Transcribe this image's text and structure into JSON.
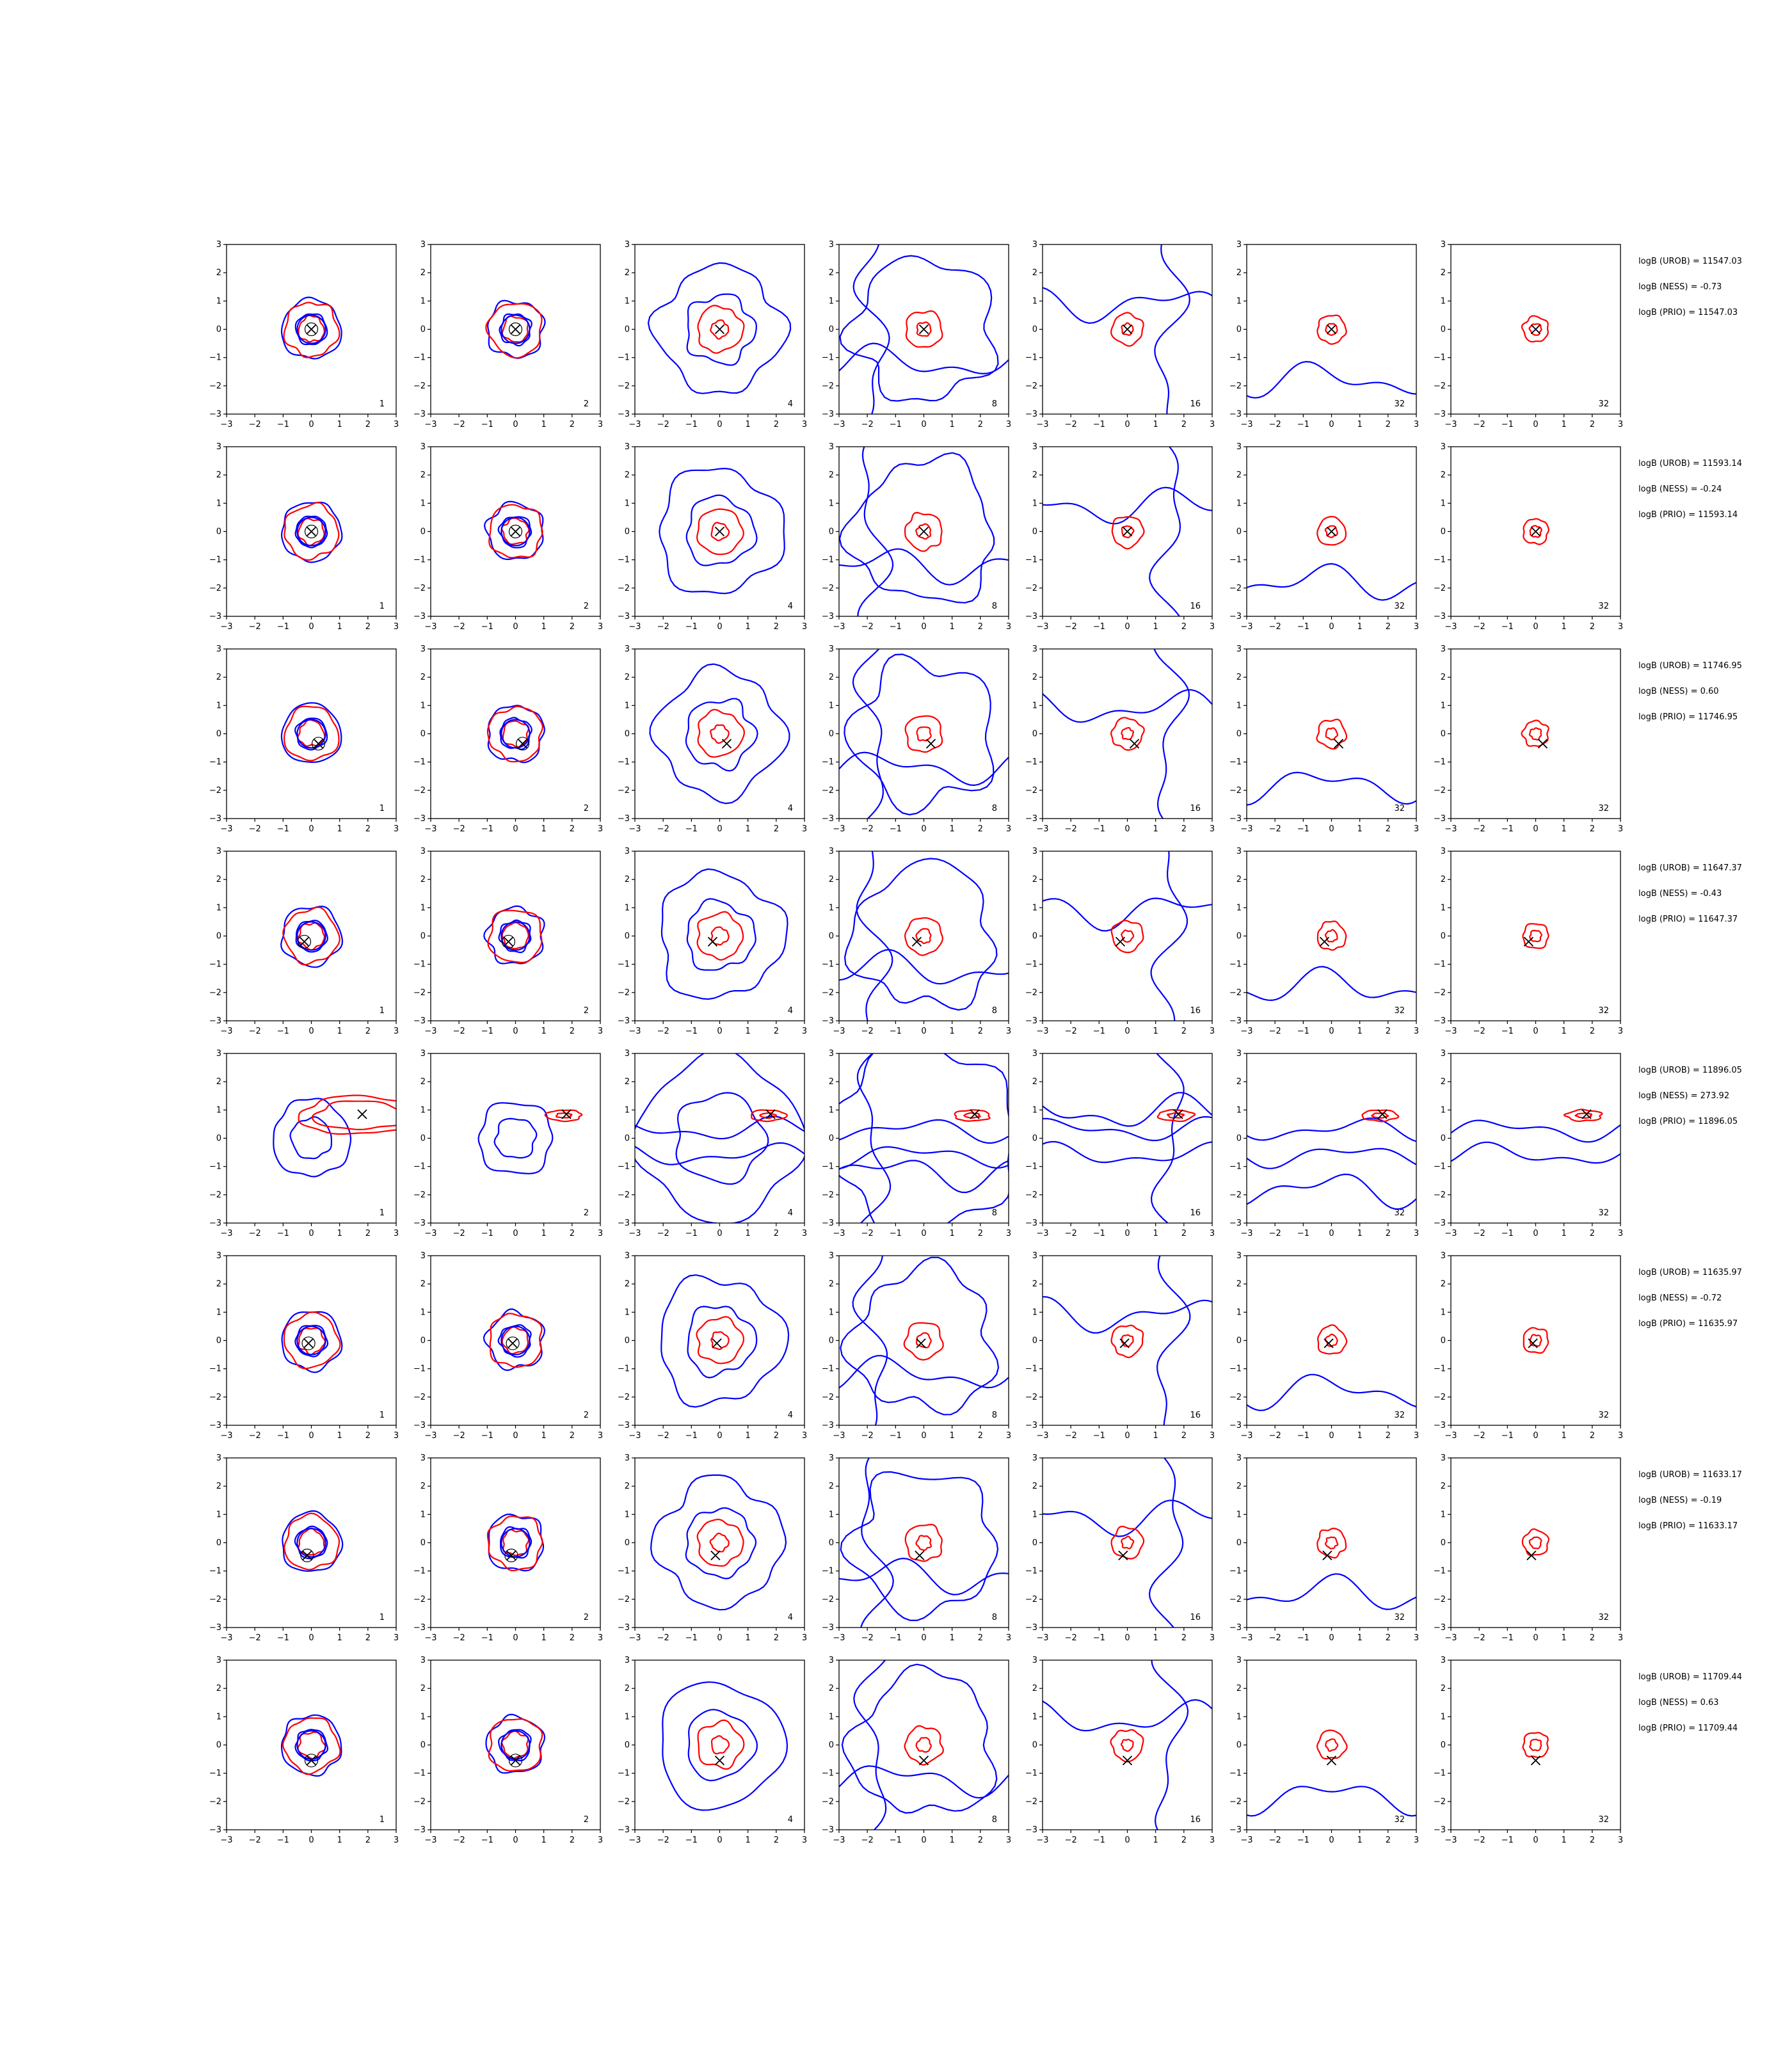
{
  "figure": {
    "type": "contour-grid",
    "rows": 8,
    "cols": 7,
    "axis_range": [
      -3,
      3
    ],
    "ticks": [
      -3,
      -2,
      -1,
      0,
      1,
      2,
      3
    ],
    "tick_labels": [
      "−3",
      "−2",
      "−1",
      "0",
      "1",
      "2",
      "3"
    ],
    "panel_labels": [
      "1",
      "2",
      "4",
      "8",
      "16",
      "32",
      "32"
    ],
    "colors": {
      "contour_a": "#0000ff",
      "contour_b": "#ff0000",
      "marker": "#000000",
      "axis": "#000000"
    },
    "marker_symbol": "x"
  },
  "chart_data": {
    "type": "scatter",
    "xlim": [
      -3,
      3
    ],
    "ylim": [
      -3,
      3
    ],
    "grid": false,
    "rows": [
      {
        "marker": [
          0.0,
          0.0
        ],
        "logB_UROB": "11547.03",
        "logB_NESS": "-0.73",
        "logB_PRIO": "11547.03"
      },
      {
        "marker": [
          0.0,
          0.0
        ],
        "logB_UROB": "11593.14",
        "logB_NESS": "-0.24",
        "logB_PRIO": "11593.14"
      },
      {
        "marker": [
          0.25,
          -0.35
        ],
        "logB_UROB": "11746.95",
        "logB_NESS": "0.60",
        "logB_PRIO": "11746.95"
      },
      {
        "marker": [
          -0.25,
          -0.2
        ],
        "logB_UROB": "11647.37",
        "logB_NESS": "-0.43",
        "logB_PRIO": "11647.37"
      },
      {
        "marker": [
          1.8,
          0.85
        ],
        "logB_UROB": "11896.05",
        "logB_NESS": "273.92",
        "logB_PRIO": "11896.05"
      },
      {
        "marker": [
          -0.1,
          -0.1
        ],
        "logB_UROB": "11635.97",
        "logB_NESS": "-0.72",
        "logB_PRIO": "11635.97"
      },
      {
        "marker": [
          -0.15,
          -0.45
        ],
        "logB_UROB": "11633.17",
        "logB_NESS": "-0.19",
        "logB_PRIO": "11633.17"
      },
      {
        "marker": [
          0.0,
          -0.55
        ],
        "logB_UROB": "11709.44",
        "logB_NESS": "0.63",
        "logB_PRIO": "11709.44"
      }
    ]
  },
  "annotations": [
    {
      "line1": "logB (UROB) = 11547.03",
      "line2": "logB (NESS) = -0.73",
      "line3": "logB (PRIO) = 11547.03"
    },
    {
      "line1": "logB (UROB) = 11593.14",
      "line2": "logB (NESS) = -0.24",
      "line3": "logB (PRIO) = 11593.14"
    },
    {
      "line1": "logB (UROB) = 11746.95",
      "line2": "logB (NESS) = 0.60",
      "line3": "logB (PRIO) = 11746.95"
    },
    {
      "line1": "logB (UROB) = 11647.37",
      "line2": "logB (NESS) = -0.43",
      "line3": "logB (PRIO) = 11647.37"
    },
    {
      "line1": "logB (UROB) = 11896.05",
      "line2": "logB (NESS) = 273.92",
      "line3": "logB (PRIO) = 11896.05"
    },
    {
      "line1": "logB (UROB) = 11635.97",
      "line2": "logB (NESS) = -0.72",
      "line3": "logB (PRIO) = 11635.97"
    },
    {
      "line1": "logB (UROB) = 11633.17",
      "line2": "logB (NESS) = -0.19",
      "line3": "logB (PRIO) = 11633.17"
    },
    {
      "line1": "logB (UROB) = 11709.44",
      "line2": "logB (NESS) = 0.63",
      "line3": "logB (PRIO) = 11709.44"
    }
  ]
}
